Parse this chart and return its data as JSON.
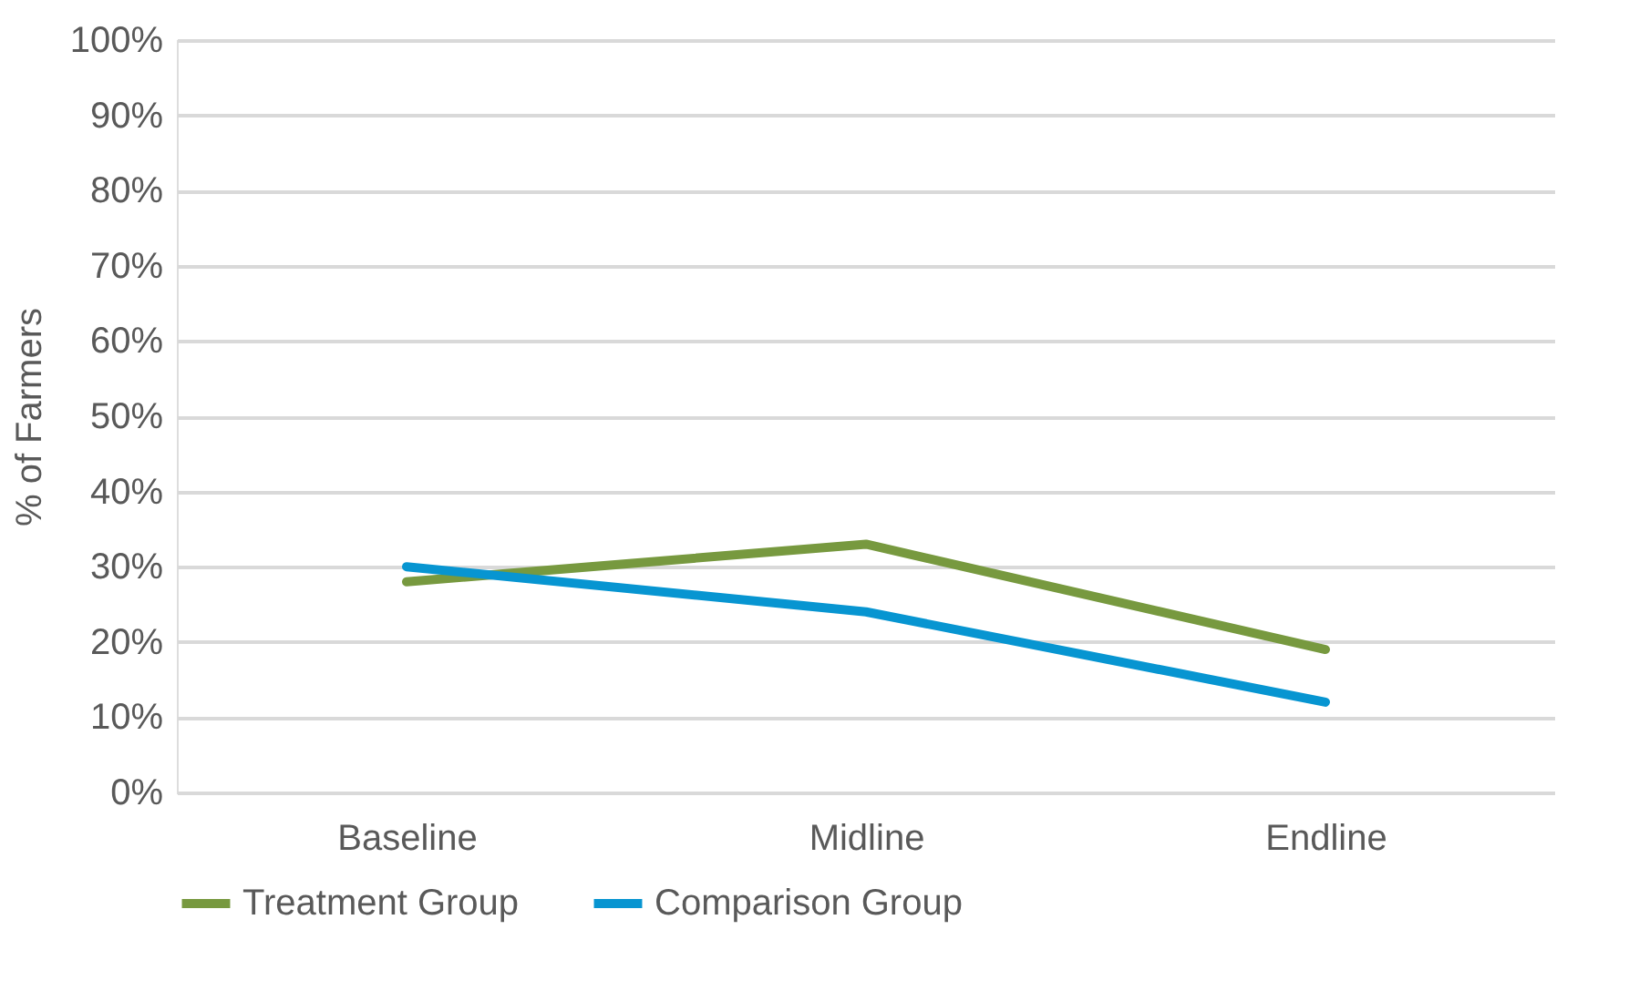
{
  "chart_data": {
    "type": "line",
    "ylabel": "% of Farmers",
    "categories": [
      "Baseline",
      "Midline",
      "Endline"
    ],
    "series": [
      {
        "name": "Treatment Group",
        "color": "#77993f",
        "values": [
          28,
          33,
          19
        ]
      },
      {
        "name": "Comparison Group",
        "color": "#0795d1",
        "values": [
          30,
          24,
          12
        ]
      }
    ],
    "ylim": [
      0,
      100
    ],
    "yticks": [
      {
        "value": 0,
        "label": "0%"
      },
      {
        "value": 10,
        "label": "10%"
      },
      {
        "value": 20,
        "label": "20%"
      },
      {
        "value": 30,
        "label": "30%"
      },
      {
        "value": 40,
        "label": "40%"
      },
      {
        "value": 50,
        "label": "50%"
      },
      {
        "value": 60,
        "label": "60%"
      },
      {
        "value": 70,
        "label": "70%"
      },
      {
        "value": 80,
        "label": "80%"
      },
      {
        "value": 90,
        "label": "90%"
      },
      {
        "value": 100,
        "label": "100%"
      }
    ],
    "grid": "y",
    "legend": "bottom",
    "marker": "none",
    "line_style": "solid"
  }
}
